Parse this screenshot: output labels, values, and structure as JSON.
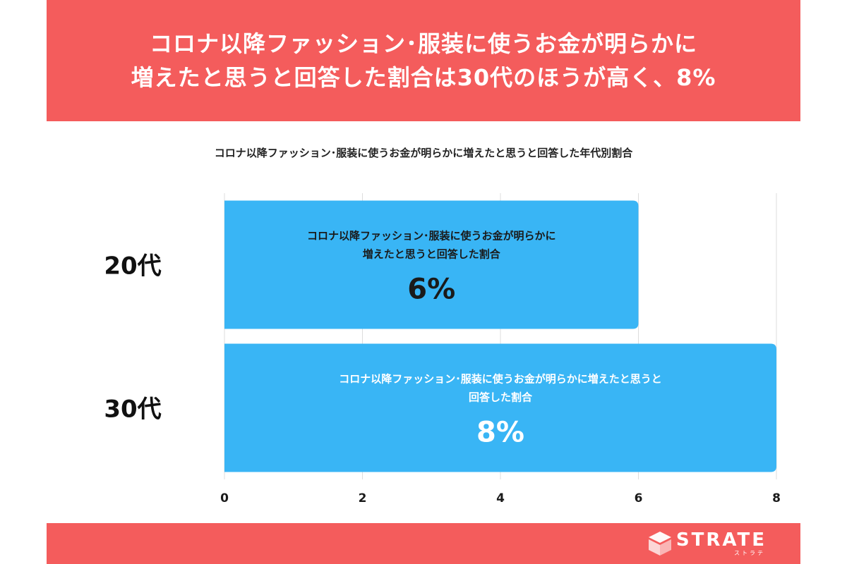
{
  "header": {
    "title_line1": "コロナ以降ファッション･服装に使うお金が明らかに",
    "title_line2": "増えたと思うと回答した割合は30代のほうが高く、8%"
  },
  "chart_data": {
    "type": "bar",
    "orientation": "horizontal",
    "title": "コロナ以降ファッション･服装に使うお金が明らかに増えたと思うと回答した年代別割合",
    "categories": [
      "20代",
      "30代"
    ],
    "values": [
      6,
      8
    ],
    "value_labels": [
      "6%",
      "8%"
    ],
    "bar_label_lines": [
      [
        "コロナ以降ファッション･服装に使うお金が明らかに",
        "増えたと思うと回答した割合"
      ],
      [
        "コロナ以降ファッション･服装に使うお金が明らかに増えたと思うと",
        "回答した割合"
      ]
    ],
    "xlim": [
      0,
      8
    ],
    "x_ticks": [
      "0",
      "2",
      "4",
      "6",
      "8"
    ],
    "grid": true,
    "colors": {
      "bar": "#39b5f5",
      "grid": "#dddddd",
      "label_bar1": "#1a1a1a",
      "label_bar2": "#ffffff"
    }
  },
  "footer": {
    "logo_text": "STRATE",
    "logo_kana": "ストラテ",
    "logo_icon": "strate-logo-icon"
  },
  "colors": {
    "accent": "#f45c5c"
  }
}
